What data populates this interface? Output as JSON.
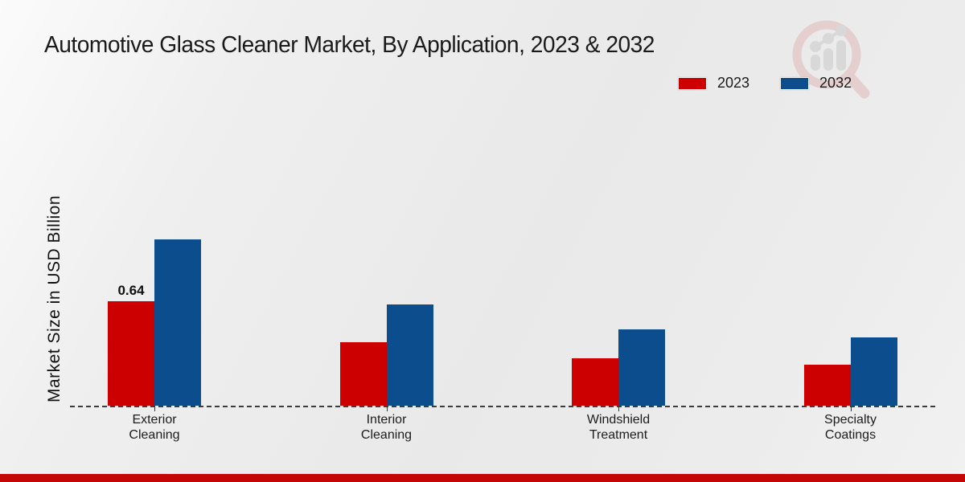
{
  "chart_data": {
    "type": "bar",
    "title": "Automotive Glass Cleaner Market, By Application, 2023 & 2032",
    "ylabel": "Market Size in USD Billion",
    "xlabel": "",
    "categories": [
      "Exterior Cleaning",
      "Interior Cleaning",
      "Windshield Treatment",
      "Specialty Coatings"
    ],
    "series": [
      {
        "name": "2023",
        "color": "#cc0000",
        "values": [
          0.64,
          0.39,
          0.29,
          0.25
        ]
      },
      {
        "name": "2032",
        "color": "#0b4d8d",
        "values": [
          1.02,
          0.62,
          0.47,
          0.42
        ]
      }
    ],
    "annotations": [
      {
        "series": "2023",
        "category": "Exterior Cleaning",
        "text": "0.64"
      }
    ],
    "ylim": [
      0,
      1.1
    ],
    "grid": false,
    "baseline_style": "dashed",
    "legend_position": "top-right"
  },
  "branding": {
    "watermark_icon": "magnifier-bar-chart-logo",
    "footer_bar_color": "#c40606"
  }
}
